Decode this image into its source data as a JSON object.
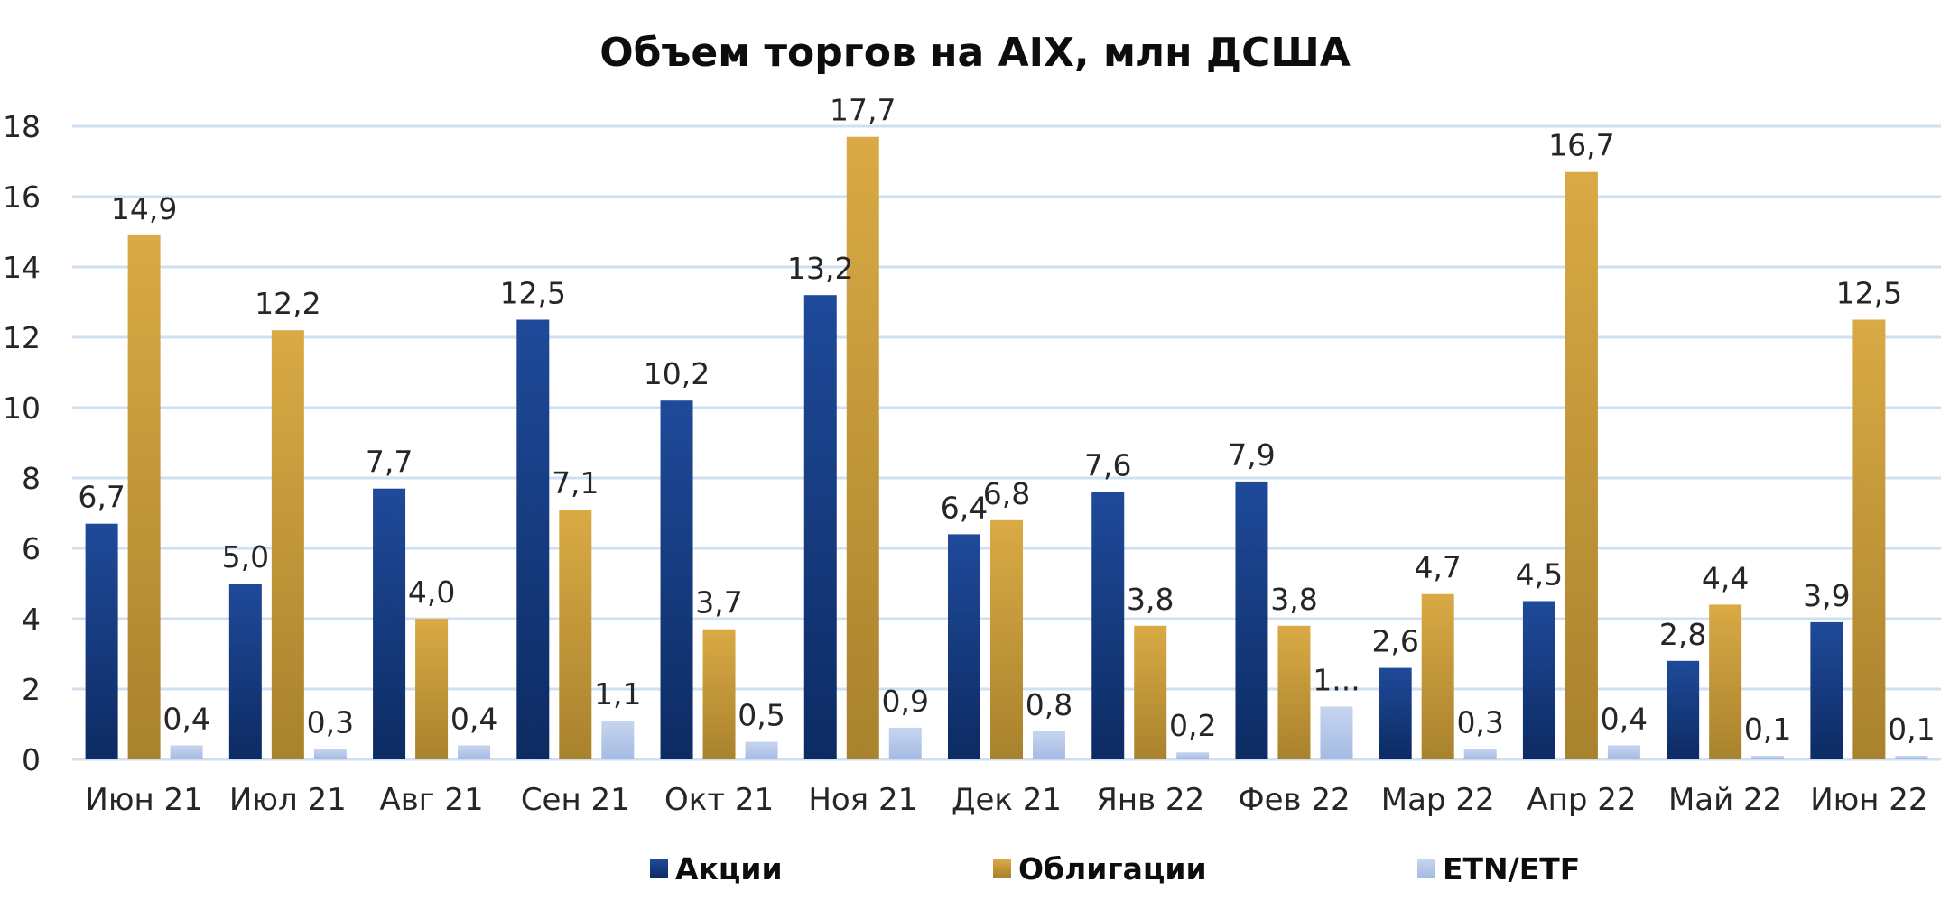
{
  "colors": {
    "akcii_top": "#1f4a9a",
    "akcii_bottom": "#0d2b63",
    "obligacii_top": "#d9aa45",
    "obligacii_bottom": "#a9822d",
    "etf_top": "#c6d5f0",
    "etf_bottom": "#a5bbe3",
    "grid": "#cfe0f2"
  },
  "chart_data": {
    "type": "bar",
    "title": "Объем торгов на AIX, млн ДСША",
    "xlabel": "",
    "ylabel": "",
    "ylim": [
      0,
      18
    ],
    "yticks": [
      "0",
      "2",
      "4",
      "6",
      "8",
      "10",
      "12",
      "14",
      "16",
      "18"
    ],
    "grid": true,
    "legend_position": "bottom",
    "categories": [
      "Июн 21",
      "Июл 21",
      "Авг 21",
      "Сен 21",
      "Окт 21",
      "Ноя 21",
      "Дек 21",
      "Янв 22",
      "Фев 22",
      "Мар 22",
      "Апр 22",
      "Май 22",
      "Июн 22"
    ],
    "series": [
      {
        "name": "Акции",
        "values": [
          6.7,
          5.0,
          7.7,
          12.5,
          10.2,
          13.2,
          6.4,
          7.6,
          7.9,
          2.6,
          4.5,
          2.8,
          3.9
        ],
        "labels": [
          "6,7",
          "5,0",
          "7,7",
          "12,5",
          "10,2",
          "13,2",
          "6,4",
          "7,6",
          "7,9",
          "2,6",
          "4,5",
          "2,8",
          "3,9"
        ]
      },
      {
        "name": "Облигации",
        "values": [
          14.9,
          12.2,
          4.0,
          7.1,
          3.7,
          17.7,
          6.8,
          3.8,
          3.8,
          4.7,
          16.7,
          4.4,
          12.5
        ],
        "labels": [
          "14,9",
          "12,2",
          "4,0",
          "7,1",
          "3,7",
          "17,7",
          "6,8",
          "3,8",
          "3,8",
          "4,7",
          "16,7",
          "4,4",
          "12,5"
        ]
      },
      {
        "name": "ETN/ETF",
        "values": [
          0.4,
          0.3,
          0.4,
          1.1,
          0.5,
          0.9,
          0.8,
          0.2,
          1.5,
          0.3,
          0.4,
          0.1,
          0.1
        ],
        "labels": [
          "0,4",
          "0,3",
          "0,4",
          "1,1",
          "0,5",
          "0,9",
          "0,8",
          "0,2",
          "1...",
          "0,3",
          "0,4",
          "0,1",
          "0,1"
        ]
      }
    ]
  }
}
